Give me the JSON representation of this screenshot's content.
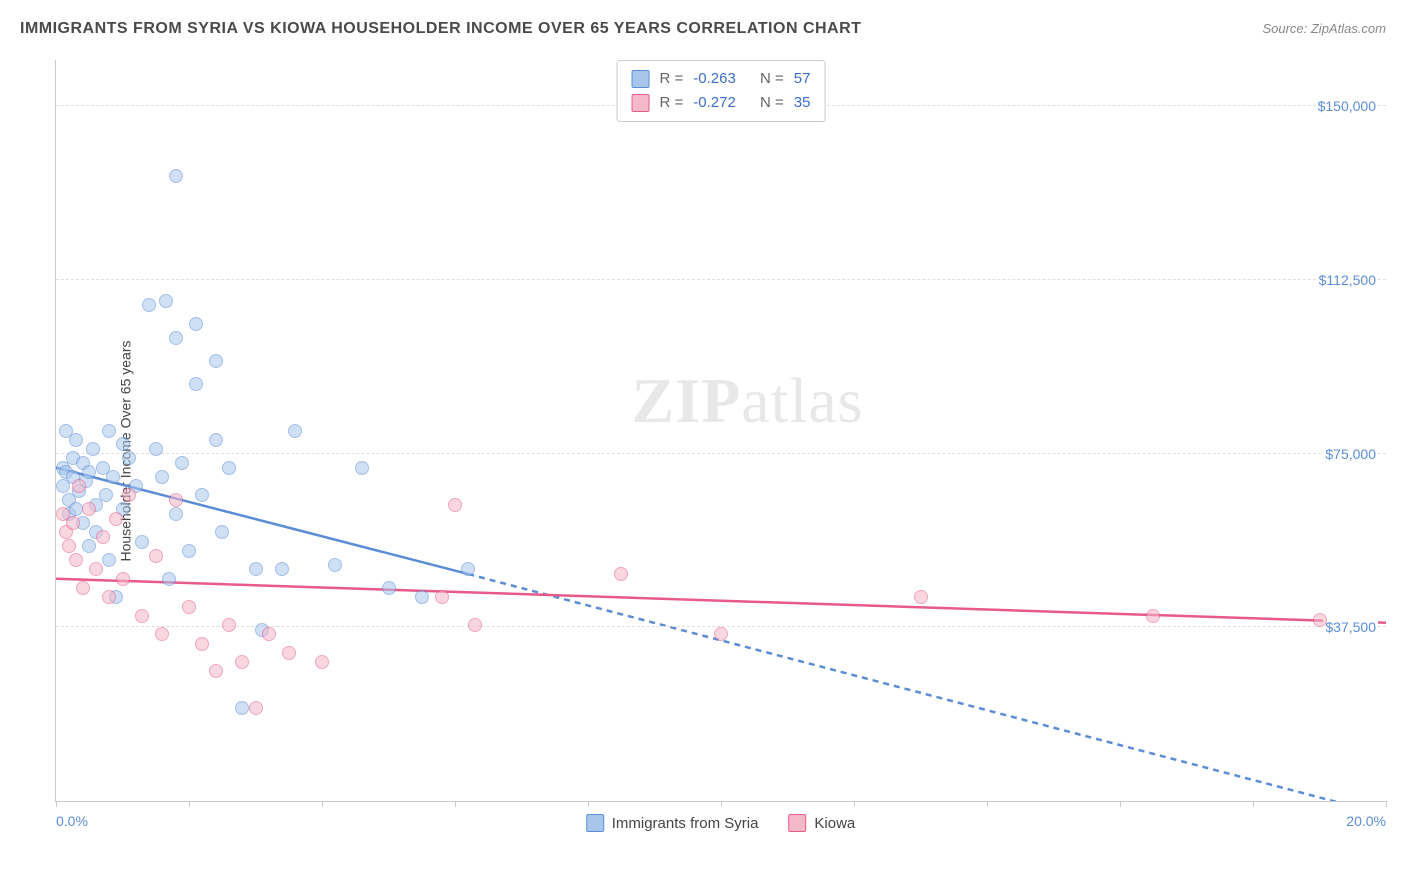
{
  "header": {
    "title": "IMMIGRANTS FROM SYRIA VS KIOWA HOUSEHOLDER INCOME OVER 65 YEARS CORRELATION CHART",
    "source_prefix": "Source: ",
    "source": "ZipAtlas.com"
  },
  "watermark": {
    "part1": "ZIP",
    "part2": "atlas"
  },
  "chart": {
    "type": "scatter",
    "background_color": "#ffffff",
    "grid_color": "#e0e0e0",
    "axis_color": "#cccccc",
    "axis_label_color": "#5b8dd6",
    "ylabel": "Householder Income Over 65 years",
    "label_fontsize": 14,
    "xlim": [
      0,
      20
    ],
    "ylim": [
      0,
      160000
    ],
    "xticks": [
      0,
      2,
      4,
      6,
      8,
      10,
      12,
      14,
      16,
      18,
      20
    ],
    "xlabels": {
      "min": "0.0%",
      "max": "20.0%"
    },
    "yticks": [
      {
        "value": 37500,
        "label": "$37,500"
      },
      {
        "value": 75000,
        "label": "$75,000"
      },
      {
        "value": 112500,
        "label": "$112,500"
      },
      {
        "value": 150000,
        "label": "$150,000"
      }
    ],
    "marker_radius": 7,
    "marker_stroke_width": 1.5,
    "trend_line_width": 2.5,
    "series": [
      {
        "name": "Immigrants from Syria",
        "fill": "#a8c6ec",
        "stroke": "#5b8dd6",
        "fill_opacity": 0.55,
        "R": "-0.263",
        "N": "57",
        "trend": {
          "solid_from": [
            0,
            72000
          ],
          "solid_to": [
            6.2,
            49000
          ],
          "dashed_to": [
            20,
            -3000
          ]
        },
        "points": [
          [
            0.1,
            72000
          ],
          [
            0.1,
            68000
          ],
          [
            0.15,
            80000
          ],
          [
            0.15,
            71000
          ],
          [
            0.2,
            65000
          ],
          [
            0.2,
            62000
          ],
          [
            0.25,
            74000
          ],
          [
            0.25,
            70000
          ],
          [
            0.3,
            63000
          ],
          [
            0.3,
            78000
          ],
          [
            0.35,
            67000
          ],
          [
            0.4,
            60000
          ],
          [
            0.4,
            73000
          ],
          [
            0.45,
            69000
          ],
          [
            0.5,
            71000
          ],
          [
            0.5,
            55000
          ],
          [
            0.55,
            76000
          ],
          [
            0.6,
            64000
          ],
          [
            0.6,
            58000
          ],
          [
            0.7,
            72000
          ],
          [
            0.75,
            66000
          ],
          [
            0.8,
            80000
          ],
          [
            0.8,
            52000
          ],
          [
            0.85,
            70000
          ],
          [
            0.9,
            44000
          ],
          [
            1.0,
            77000
          ],
          [
            1.0,
            63000
          ],
          [
            1.1,
            74000
          ],
          [
            1.2,
            68000
          ],
          [
            1.3,
            56000
          ],
          [
            1.4,
            107000
          ],
          [
            1.5,
            76000
          ],
          [
            1.6,
            70000
          ],
          [
            1.65,
            108000
          ],
          [
            1.7,
            48000
          ],
          [
            1.8,
            135000
          ],
          [
            1.8,
            62000
          ],
          [
            1.8,
            100000
          ],
          [
            1.9,
            73000
          ],
          [
            2.0,
            54000
          ],
          [
            2.1,
            90000
          ],
          [
            2.1,
            103000
          ],
          [
            2.2,
            66000
          ],
          [
            2.4,
            78000
          ],
          [
            2.4,
            95000
          ],
          [
            2.5,
            58000
          ],
          [
            2.6,
            72000
          ],
          [
            2.8,
            20000
          ],
          [
            3.0,
            50000
          ],
          [
            3.1,
            37000
          ],
          [
            3.4,
            50000
          ],
          [
            3.6,
            80000
          ],
          [
            4.2,
            51000
          ],
          [
            4.6,
            72000
          ],
          [
            5.0,
            46000
          ],
          [
            5.5,
            44000
          ],
          [
            6.2,
            50000
          ]
        ]
      },
      {
        "name": "Kiowa",
        "fill": "#f4b8c8",
        "stroke": "#e85a8a",
        "fill_opacity": 0.55,
        "R": "-0.272",
        "N": "35",
        "trend": {
          "solid_from": [
            0,
            48000
          ],
          "solid_to": [
            20,
            38500
          ]
        },
        "points": [
          [
            0.1,
            62000
          ],
          [
            0.15,
            58000
          ],
          [
            0.2,
            55000
          ],
          [
            0.25,
            60000
          ],
          [
            0.3,
            52000
          ],
          [
            0.35,
            68000
          ],
          [
            0.4,
            46000
          ],
          [
            0.5,
            63000
          ],
          [
            0.6,
            50000
          ],
          [
            0.7,
            57000
          ],
          [
            0.8,
            44000
          ],
          [
            0.9,
            61000
          ],
          [
            1.0,
            48000
          ],
          [
            1.1,
            66000
          ],
          [
            1.3,
            40000
          ],
          [
            1.5,
            53000
          ],
          [
            1.6,
            36000
          ],
          [
            1.8,
            65000
          ],
          [
            2.0,
            42000
          ],
          [
            2.2,
            34000
          ],
          [
            2.4,
            28000
          ],
          [
            2.6,
            38000
          ],
          [
            2.8,
            30000
          ],
          [
            3.0,
            20000
          ],
          [
            3.2,
            36000
          ],
          [
            3.5,
            32000
          ],
          [
            4.0,
            30000
          ],
          [
            5.8,
            44000
          ],
          [
            6.0,
            64000
          ],
          [
            6.3,
            38000
          ],
          [
            8.5,
            49000
          ],
          [
            10.0,
            36000
          ],
          [
            13.0,
            44000
          ],
          [
            16.5,
            40000
          ],
          [
            19.0,
            39000
          ]
        ]
      }
    ],
    "stats_box": {
      "r_label": "R =",
      "n_label": "N ="
    }
  }
}
